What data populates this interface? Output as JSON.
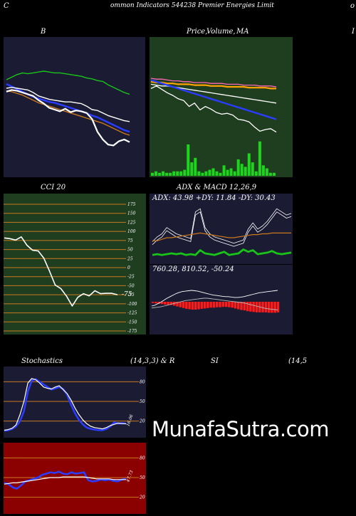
{
  "header": {
    "left": "C",
    "title": "ommon  Indicators 544238  Premier Energies Limit",
    "right": "o"
  },
  "panels": {
    "bollinger": {
      "title": "B",
      "right_edge": "I"
    },
    "price": {
      "title_a": "Price,",
      "title_b": "Volume,",
      "title_c": "MA"
    },
    "cci": {
      "title": "CCI 20",
      "ticks": [
        "175",
        "150",
        "125",
        "100",
        "75",
        "50",
        "25",
        "0",
        "-25",
        "-50",
        "-75",
        "-100",
        "-125",
        "-150",
        "-175"
      ],
      "current_label": "-75"
    },
    "adx": {
      "title": "ADX  & MACD 12,26,9",
      "readout": "ADX: 43.98  +DY: 11.84  -DY: 30.43"
    },
    "macd": {
      "readout": "760.28,  810.52,  -50.24"
    },
    "stoch": {
      "title_a": "Stochastics",
      "title_b": "(14,3,3) & R",
      "ticks": [
        "80",
        "50",
        "20"
      ],
      "current_label": "16.06"
    },
    "rsi": {
      "title_a": "SI",
      "title_b": "(14,5",
      "ticks": [
        "80",
        "50",
        "20"
      ],
      "current_label": "47.73"
    }
  },
  "watermark": "MunafaSutra.com",
  "colors": {
    "navy_bg": "#1b1b33",
    "green_bg": "#1f3d1f",
    "dark_red_bg": "#8b0000",
    "grid_orange": "#c8791e",
    "blue_line": "#2a3cff",
    "green_line": "#19c419",
    "bar_green": "#1cd51c",
    "bar_red": "#ff1a1a"
  },
  "chart_data": [
    {
      "id": "bollinger",
      "type": "line",
      "series": [
        {
          "color": "#19c419",
          "values": [
            25,
            28,
            31,
            33,
            32,
            33,
            34,
            35,
            34,
            33,
            33,
            32,
            31,
            30,
            29,
            27,
            26,
            24,
            23,
            19,
            16,
            13,
            10,
            8
          ]
        },
        {
          "color": "#2a3cff",
          "values": [
            20,
            17,
            14,
            11,
            8,
            5,
            3,
            1,
            -1,
            -2,
            -4,
            -6,
            -8,
            -10,
            -12,
            -14,
            -17,
            -19,
            -22,
            -25,
            -28,
            -31,
            -34,
            -36
          ]
        },
        {
          "color": "#ffffff",
          "values": [
            15,
            16,
            15,
            14,
            13,
            10,
            6,
            4,
            2,
            1,
            0,
            -1,
            -1,
            -2,
            -3,
            -6,
            -10,
            -11,
            -14,
            -17,
            -19,
            -21,
            -23,
            -24
          ]
        },
        {
          "color": "#c8791e",
          "values": [
            12,
            11,
            9,
            7,
            4,
            1,
            -2,
            -4,
            -6,
            -8,
            -10,
            -12,
            -14,
            -16,
            -18,
            -20,
            -22,
            -24,
            -26,
            -29,
            -32,
            -35,
            -38,
            -40
          ]
        },
        {
          "color": "#ffffff",
          "values": [
            11,
            13,
            12,
            10,
            8,
            6,
            1,
            -3,
            -8,
            -10,
            -12,
            -9,
            -13,
            -11,
            -12,
            -14,
            -21,
            -36,
            -45,
            -51,
            -52,
            -47,
            -45,
            -48
          ]
        }
      ]
    },
    {
      "id": "price_volume",
      "type": "line",
      "series": [
        {
          "color": "#ff69b4",
          "values": [
            60,
            59,
            59,
            58,
            57,
            57,
            56,
            56,
            55,
            55,
            55,
            54,
            54,
            54,
            53,
            53,
            53,
            52,
            52,
            52,
            51,
            51,
            51,
            50
          ]
        },
        {
          "color": "#ffa500",
          "values": [
            56,
            55,
            55,
            54,
            54,
            53,
            53,
            53,
            52,
            52,
            52,
            51,
            51,
            51,
            50,
            50,
            50,
            50,
            49,
            49,
            49,
            49,
            48,
            48
          ]
        },
        {
          "color": "#ffffff",
          "values": [
            53,
            52,
            51,
            51,
            50,
            49,
            48,
            47,
            46,
            45,
            44,
            43,
            42,
            41,
            40,
            39,
            38,
            37,
            36,
            35,
            34,
            33,
            32,
            31
          ]
        },
        {
          "color": "#2a3cff",
          "values": [
            58,
            56,
            54,
            52,
            50,
            48,
            46,
            44,
            42,
            40,
            38,
            36,
            34,
            32,
            30,
            28,
            26,
            24,
            22,
            20,
            18,
            16,
            14,
            12
          ]
        },
        {
          "color": "#ffffff",
          "values": [
            48,
            51,
            47,
            43,
            40,
            36,
            34,
            27,
            31,
            23,
            27,
            24,
            20,
            18,
            19,
            17,
            12,
            11,
            9,
            3,
            -2,
            0,
            1,
            -3
          ]
        }
      ],
      "volume": [
        2,
        3,
        2,
        3,
        2,
        2,
        3,
        3,
        3,
        4,
        21,
        9,
        12,
        3,
        2,
        3,
        4,
        5,
        3,
        2,
        7,
        4,
        5,
        3,
        11,
        8,
        6,
        15,
        9,
        3,
        23,
        7,
        5,
        2,
        2
      ]
    },
    {
      "id": "cci",
      "type": "line",
      "ylim": [
        -175,
        175
      ],
      "values": [
        82,
        80,
        76,
        85,
        62,
        48,
        46,
        26,
        -10,
        -48,
        -58,
        -79,
        -106,
        -82,
        -72,
        -78,
        -64,
        -72,
        -71,
        -71,
        -75
      ]
    },
    {
      "id": "adx",
      "type": "line",
      "series": [
        {
          "color": "#ffffff",
          "values": [
            22,
            28,
            32,
            40,
            36,
            32,
            30,
            28,
            26,
            60,
            64,
            40,
            32,
            28,
            26,
            24,
            22,
            20,
            22,
            24,
            38,
            46,
            38,
            42,
            48,
            56,
            64,
            60,
            56,
            58
          ]
        },
        {
          "color": "#c8791e",
          "values": [
            26,
            26,
            28,
            30,
            30,
            31,
            32,
            33,
            34,
            35,
            36,
            35,
            34,
            33,
            32,
            31,
            30,
            30,
            31,
            32,
            33,
            34,
            34,
            35,
            35,
            36,
            36,
            36,
            36,
            36
          ]
        },
        {
          "color": "#19c419",
          "values": [
            8,
            9,
            8,
            9,
            10,
            9,
            10,
            8,
            9,
            8,
            14,
            10,
            9,
            8,
            10,
            12,
            8,
            9,
            10,
            15,
            12,
            14,
            9,
            10,
            11,
            13,
            10,
            9,
            10,
            11
          ]
        }
      ]
    },
    {
      "id": "macd",
      "type": "bar",
      "values": [
        -3,
        -4,
        -5,
        -6,
        -7,
        -8,
        -8,
        -10,
        -12,
        -14,
        -16,
        -18,
        -19,
        -20,
        -20,
        -19,
        -18,
        -17,
        -16,
        -15,
        -15,
        -14,
        -14,
        -13,
        -13,
        -14,
        -15,
        -17,
        -19,
        -21,
        -22,
        -24,
        -25,
        -26,
        -27,
        -27,
        -27,
        -27,
        -28,
        -28,
        -28,
        -27
      ],
      "series": [
        {
          "name": "760.28",
          "values": [
            800,
            798,
            794,
            790,
            785,
            780,
            776,
            772,
            768,
            765,
            763,
            762,
            761,
            760,
            761,
            762,
            764,
            766,
            768,
            770,
            772,
            773,
            774,
            775,
            776,
            776,
            777,
            778,
            778,
            777,
            776,
            774,
            772,
            770,
            768,
            766,
            765,
            764,
            763,
            762,
            761,
            760
          ]
        },
        {
          "name": "810.52",
          "values": [
            805,
            804,
            803,
            802,
            800,
            798,
            796,
            794,
            792,
            790,
            788,
            786,
            785,
            784,
            783,
            782,
            781,
            780,
            780,
            781,
            782,
            783,
            784,
            785,
            786,
            787,
            788,
            789,
            790,
            791,
            792,
            794,
            796,
            798,
            800,
            802,
            804,
            806,
            807,
            808,
            809,
            810
          ]
        }
      ]
    },
    {
      "id": "stochastics",
      "type": "line",
      "ylim": [
        0,
        100
      ],
      "series": [
        {
          "color": "#2a3cff",
          "values": [
            5,
            6,
            8,
            12,
            20,
            35,
            65,
            82,
            84,
            80,
            76,
            72,
            68,
            70,
            72,
            69,
            60,
            45,
            32,
            22,
            15,
            10,
            8,
            7,
            6,
            6,
            8,
            12,
            18,
            16,
            17,
            16
          ]
        },
        {
          "color": "#ffffff",
          "values": [
            6,
            7,
            9,
            14,
            30,
            50,
            78,
            85,
            83,
            78,
            72,
            70,
            69,
            72,
            74,
            68,
            62,
            52,
            40,
            30,
            22,
            16,
            12,
            10,
            9,
            8,
            10,
            13,
            15,
            17,
            16,
            16
          ]
        }
      ]
    },
    {
      "id": "rsi",
      "type": "line",
      "ylim": [
        0,
        100
      ],
      "series": [
        {
          "color": "#2a3cff",
          "values": [
            42,
            40,
            35,
            33,
            38,
            44,
            46,
            48,
            50,
            54,
            56,
            58,
            57,
            59,
            56,
            55,
            58,
            56,
            57,
            58,
            46,
            44,
            45,
            47,
            46,
            47,
            45,
            44,
            47,
            48
          ]
        },
        {
          "color": "#ffffff",
          "values": [
            40,
            41,
            42,
            42,
            43,
            44,
            45,
            46,
            47,
            48,
            49,
            50,
            50,
            50,
            51,
            51,
            51,
            51,
            51,
            51,
            50,
            49,
            48,
            48,
            48,
            48,
            47,
            47,
            47,
            47
          ]
        }
      ]
    }
  ]
}
